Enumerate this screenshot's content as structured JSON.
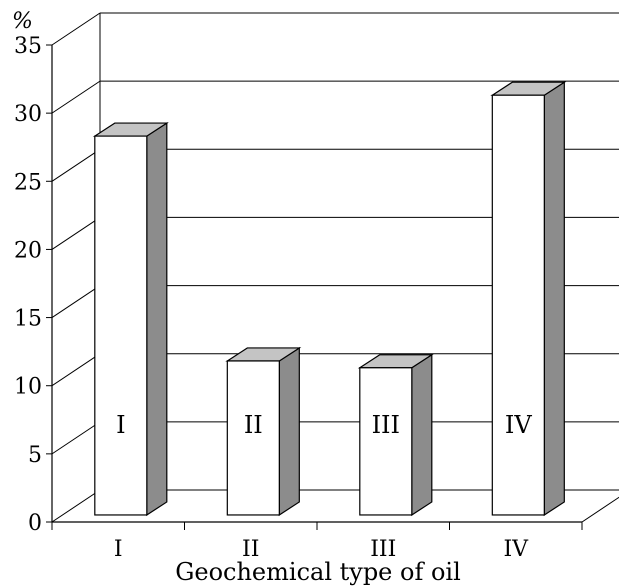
{
  "chart_data": {
    "type": "bar",
    "categories": [
      "I",
      "II",
      "III",
      "IV"
    ],
    "values": [
      27.8,
      11.3,
      10.8,
      30.8
    ],
    "bar_labels": [
      "I",
      "II",
      "III",
      "IV"
    ],
    "title": "",
    "ylabel": "%",
    "xlabel": "Geochemical type of oil",
    "ylim": [
      0,
      35
    ],
    "yticks": [
      0,
      5,
      10,
      15,
      20,
      25,
      30,
      35
    ],
    "grid": true,
    "style": "3d",
    "colors": {
      "bar_front": "#ffffff",
      "bar_side": "#8c8c8c",
      "bar_top": "#c4c4c4",
      "line": "#000000"
    }
  }
}
